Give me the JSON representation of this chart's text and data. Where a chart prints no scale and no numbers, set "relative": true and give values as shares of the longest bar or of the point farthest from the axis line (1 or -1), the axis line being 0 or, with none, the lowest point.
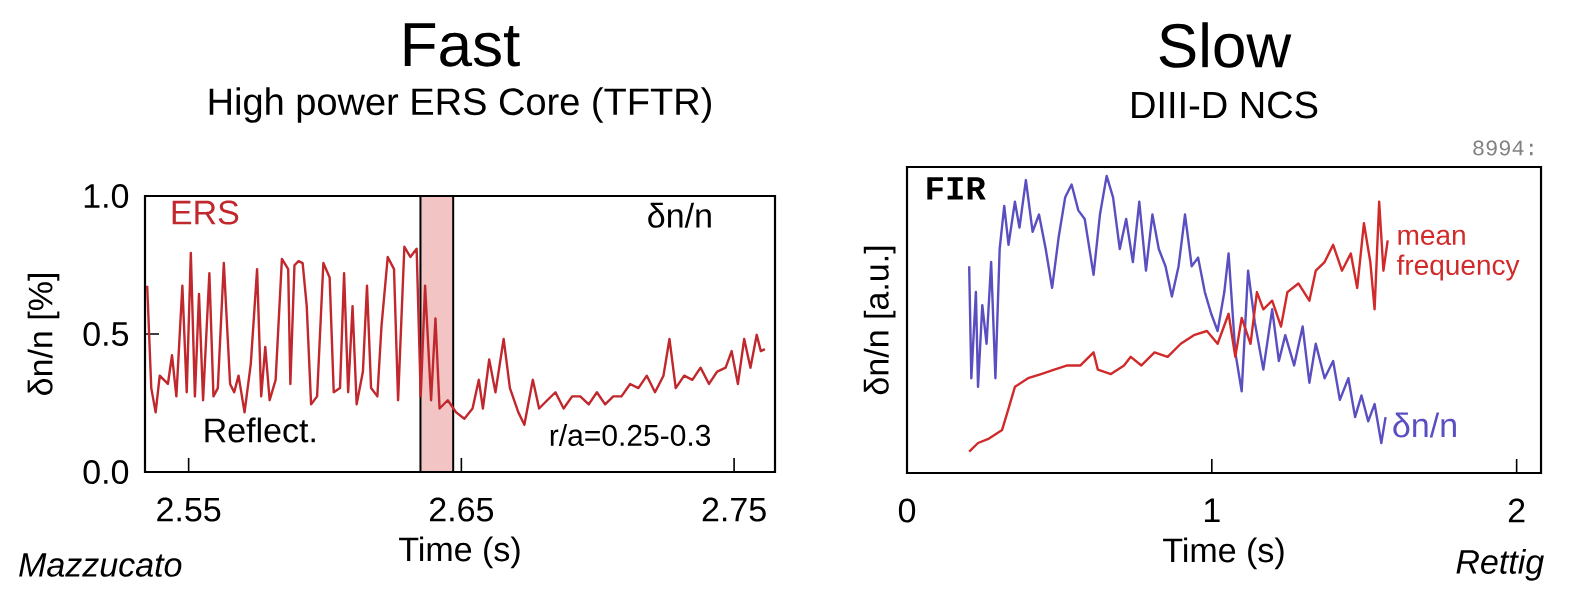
{
  "chart_data": [
    {
      "type": "line",
      "title": "Fast",
      "subtitle": "High power ERS Core (TFTR)",
      "xlabel": "Time (s)",
      "ylabel": "δn/n [%]",
      "xlim": [
        2.534,
        2.765
      ],
      "xticks": [
        2.55,
        2.65,
        2.75
      ],
      "ylim": [
        0,
        1.0
      ],
      "yticks": [
        {
          "value": 0,
          "label": "0.0"
        },
        {
          "value": 0.5,
          "label": "0.5"
        },
        {
          "value": 1.0,
          "label": "1.0"
        }
      ],
      "bands": [
        {
          "axis": "x",
          "from": 2.635,
          "to": 2.647,
          "color": "#f2c4c4"
        }
      ],
      "annotations": [
        "δn/n",
        "Reflect.",
        "r/a=0.25-0.3",
        "Mazzucato"
      ],
      "series": [
        {
          "name": "ERS",
          "color": "#c0282d",
          "x": [
            2.5348,
            2.5363,
            2.5379,
            2.5394,
            2.5424,
            2.5439,
            2.5455,
            2.5477,
            2.5493,
            2.5508,
            2.5523,
            2.5538,
            2.5553,
            2.5576,
            2.5591,
            2.5607,
            2.5629,
            2.5652,
            2.5667,
            2.5683,
            2.5705,
            2.5728,
            2.5751,
            2.5766,
            2.5781,
            2.5797,
            2.5819,
            2.5842,
            2.5865,
            2.5873,
            2.5888,
            2.5903,
            2.5918,
            2.5933,
            2.5949,
            2.5971,
            2.5994,
            2.6017,
            2.6032,
            2.6055,
            2.607,
            2.6085,
            2.6101,
            2.6116,
            2.6139,
            2.6154,
            2.6169,
            2.6192,
            2.6207,
            2.623,
            2.6253,
            2.6268,
            2.6291,
            2.6313,
            2.6336,
            2.6351,
            2.6367,
            2.6389,
            2.6405,
            2.642,
            2.645,
            2.6481,
            2.6511,
            2.6541,
            2.6564,
            2.6579,
            2.6602,
            2.6625,
            2.6655,
            2.6678,
            2.6709,
            2.6731,
            2.6762,
            2.6785,
            2.6815,
            2.6845,
            2.6875,
            2.6906,
            2.6936,
            2.6967,
            2.6997,
            2.7027,
            2.7057,
            2.7087,
            2.7119,
            2.7149,
            2.718,
            2.721,
            2.7241,
            2.7263,
            2.7286,
            2.7317,
            2.7347,
            2.7377,
            2.7408,
            2.7438,
            2.7469,
            2.7491,
            2.7514,
            2.7537,
            2.756,
            2.7583,
            2.7598,
            2.7613
          ],
          "values": [
            0.675,
            0.304,
            0.216,
            0.349,
            0.319,
            0.423,
            0.274,
            0.675,
            0.289,
            0.794,
            0.274,
            0.645,
            0.26,
            0.72,
            0.274,
            0.304,
            0.757,
            0.319,
            0.289,
            0.349,
            0.216,
            0.393,
            0.735,
            0.274,
            0.453,
            0.26,
            0.334,
            0.772,
            0.735,
            0.319,
            0.749,
            0.764,
            0.757,
            0.601,
            0.245,
            0.274,
            0.757,
            0.705,
            0.289,
            0.304,
            0.72,
            0.289,
            0.601,
            0.245,
            0.364,
            0.675,
            0.304,
            0.274,
            0.527,
            0.779,
            0.735,
            0.26,
            0.816,
            0.779,
            0.809,
            0.274,
            0.675,
            0.26,
            0.556,
            0.23,
            0.26,
            0.216,
            0.193,
            0.23,
            0.334,
            0.23,
            0.408,
            0.289,
            0.482,
            0.304,
            0.216,
            0.171,
            0.334,
            0.23,
            0.26,
            0.289,
            0.23,
            0.274,
            0.274,
            0.245,
            0.289,
            0.245,
            0.274,
            0.274,
            0.319,
            0.304,
            0.349,
            0.289,
            0.349,
            0.482,
            0.304,
            0.349,
            0.334,
            0.378,
            0.319,
            0.364,
            0.378,
            0.438,
            0.319,
            0.482,
            0.378,
            0.497,
            0.438,
            0.445
          ]
        }
      ]
    },
    {
      "type": "line",
      "title": "Slow",
      "subtitle": "DIII-D NCS",
      "xlabel": "Time (s)",
      "ylabel": "δn/n [a.u.]",
      "relative": true,
      "xlim": [
        0,
        2.08
      ],
      "xticks": [
        0,
        1,
        2
      ],
      "annotations": [
        "FIR",
        "8994:",
        "Rettig"
      ],
      "series": [
        {
          "name": "δn/n",
          "color": "#5a4fc0",
          "x": [
            0.204,
            0.211,
            0.226,
            0.233,
            0.247,
            0.261,
            0.276,
            0.29,
            0.304,
            0.319,
            0.333,
            0.354,
            0.369,
            0.39,
            0.412,
            0.433,
            0.455,
            0.476,
            0.498,
            0.519,
            0.54,
            0.562,
            0.583,
            0.612,
            0.633,
            0.655,
            0.676,
            0.698,
            0.719,
            0.741,
            0.762,
            0.784,
            0.805,
            0.826,
            0.848,
            0.869,
            0.891,
            0.912,
            0.934,
            0.955,
            0.977,
            0.998,
            1.019,
            1.041,
            1.055,
            1.077,
            1.098,
            1.119,
            1.141,
            1.169,
            1.198,
            1.22,
            1.241,
            1.27,
            1.298,
            1.32,
            1.341,
            1.37,
            1.398,
            1.42,
            1.448,
            1.47,
            1.491,
            1.513,
            1.534,
            1.556,
            1.57
          ],
          "values": [
            0.696,
            0.319,
            0.609,
            0.29,
            0.565,
            0.435,
            0.71,
            0.319,
            0.754,
            0.899,
            0.768,
            0.913,
            0.826,
            0.986,
            0.812,
            0.87,
            0.754,
            0.623,
            0.797,
            0.928,
            0.971,
            0.884,
            0.855,
            0.667,
            0.87,
            1.0,
            0.928,
            0.754,
            0.855,
            0.71,
            0.913,
            0.681,
            0.87,
            0.754,
            0.696,
            0.594,
            0.696,
            0.87,
            0.696,
            0.725,
            0.609,
            0.536,
            0.478,
            0.609,
            0.739,
            0.406,
            0.275,
            0.681,
            0.507,
            0.348,
            0.551,
            0.377,
            0.464,
            0.362,
            0.493,
            0.304,
            0.435,
            0.319,
            0.377,
            0.246,
            0.319,
            0.188,
            0.261,
            0.174,
            0.232,
            0.101,
            0.188
          ]
        },
        {
          "name": "mean frequency",
          "color": "#d02a2a",
          "x": [
            0.204,
            0.233,
            0.269,
            0.312,
            0.333,
            0.354,
            0.397,
            0.44,
            0.483,
            0.526,
            0.569,
            0.612,
            0.626,
            0.669,
            0.712,
            0.734,
            0.769,
            0.812,
            0.855,
            0.898,
            0.941,
            0.984,
            1.019,
            1.055,
            1.077,
            1.098,
            1.127,
            1.148,
            1.169,
            1.198,
            1.227,
            1.248,
            1.284,
            1.32,
            1.341,
            1.37,
            1.398,
            1.427,
            1.456,
            1.477,
            1.499,
            1.52,
            1.534,
            1.549,
            1.563,
            1.577
          ],
          "values": [
            0.072,
            0.101,
            0.116,
            0.145,
            0.217,
            0.29,
            0.319,
            0.333,
            0.348,
            0.362,
            0.362,
            0.406,
            0.348,
            0.333,
            0.362,
            0.391,
            0.362,
            0.406,
            0.391,
            0.435,
            0.464,
            0.478,
            0.435,
            0.536,
            0.391,
            0.522,
            0.435,
            0.609,
            0.551,
            0.58,
            0.493,
            0.609,
            0.638,
            0.58,
            0.681,
            0.71,
            0.768,
            0.681,
            0.739,
            0.623,
            0.841,
            0.71,
            0.551,
            0.913,
            0.681,
            0.783
          ]
        }
      ]
    }
  ]
}
